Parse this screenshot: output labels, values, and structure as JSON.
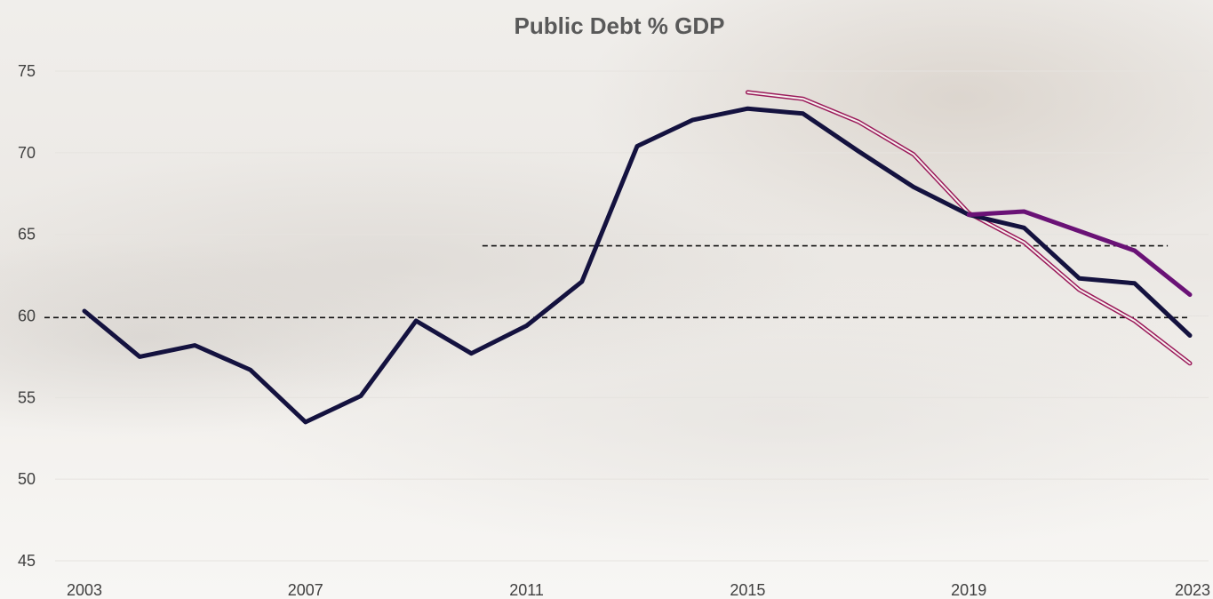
{
  "chart_data": {
    "type": "line",
    "title": "Public Debt % GDP",
    "xlabel": "",
    "ylabel": "",
    "xlim": [
      2003,
      2023
    ],
    "ylim": [
      45,
      75
    ],
    "x_tick_labels": [
      "2003",
      "2007",
      "2011",
      "2015",
      "2019",
      "2023"
    ],
    "x_tick_values": [
      2003,
      2007,
      2011,
      2015,
      2019,
      2023
    ],
    "y_tick_labels": [
      "45",
      "50",
      "55",
      "60",
      "65",
      "70",
      "75"
    ],
    "y_tick_values": [
      45,
      50,
      55,
      60,
      65,
      70,
      75
    ],
    "grid": true,
    "legend": "none",
    "series": [
      {
        "color": "#14123f",
        "style": "solid-thick",
        "points": [
          [
            2003,
            60.3
          ],
          [
            2004,
            57.5
          ],
          [
            2005,
            58.2
          ],
          [
            2006,
            56.7
          ],
          [
            2007,
            53.5
          ],
          [
            2008,
            55.1
          ],
          [
            2009,
            59.7
          ],
          [
            2010,
            57.7
          ],
          [
            2011,
            59.4
          ],
          [
            2012,
            62.1
          ],
          [
            2013,
            70.4
          ],
          [
            2014,
            72.0
          ],
          [
            2015,
            72.7
          ],
          [
            2016,
            72.4
          ],
          [
            2017,
            70.1
          ],
          [
            2018,
            67.9
          ],
          [
            2019,
            66.2
          ],
          [
            2020,
            65.4
          ],
          [
            2021,
            62.3
          ],
          [
            2022,
            62.0
          ],
          [
            2023,
            58.8
          ]
        ]
      },
      {
        "color": "#6a1276",
        "style": "solid-thick",
        "points": [
          [
            2019,
            66.2
          ],
          [
            2020,
            66.4
          ],
          [
            2021,
            65.2
          ],
          [
            2022,
            64.0
          ],
          [
            2023,
            61.3
          ]
        ]
      },
      {
        "color": "#9b1a5a",
        "style": "double-thin",
        "points": [
          [
            2015,
            73.7
          ],
          [
            2016,
            73.3
          ],
          [
            2017,
            71.9
          ],
          [
            2018,
            69.9
          ],
          [
            2019,
            66.3
          ],
          [
            2020,
            64.5
          ],
          [
            2021,
            61.6
          ],
          [
            2022,
            59.7
          ],
          [
            2023,
            57.1
          ]
        ]
      }
    ],
    "reference_lines": [
      {
        "y": 59.9,
        "x_from": 2003,
        "x_to": 2023,
        "style": "dashed",
        "color": "#111111"
      },
      {
        "y": 64.3,
        "x_from": 2010.2,
        "x_to": 2022.6,
        "style": "dashed",
        "color": "#111111"
      }
    ]
  }
}
